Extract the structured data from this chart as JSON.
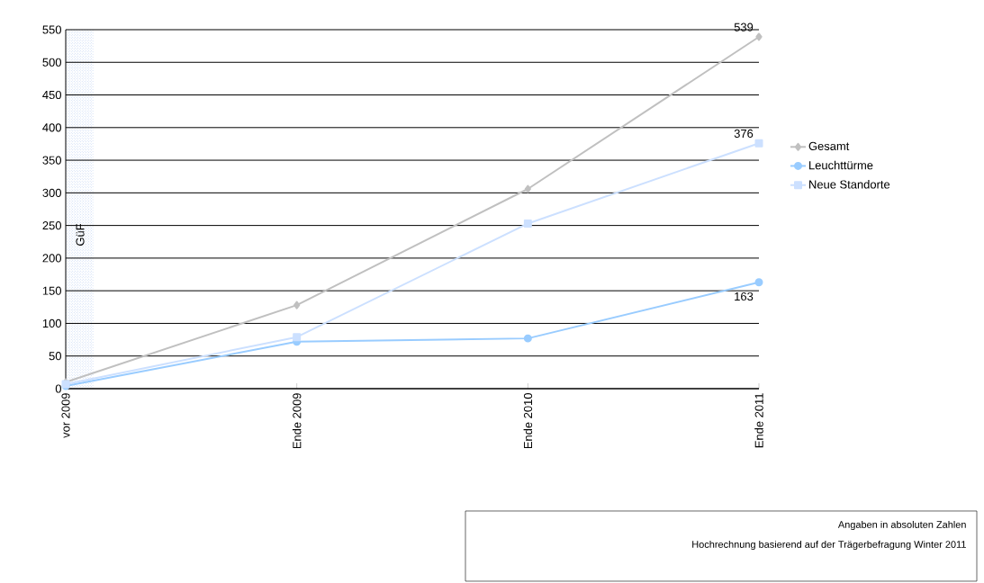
{
  "chart_data": {
    "type": "line",
    "categories": [
      "vor 2009",
      "Ende 2009",
      "Ende 2010",
      "Ende 2011"
    ],
    "series": [
      {
        "name": "Gesamt",
        "color": "#c0c0c0",
        "marker": "diamond",
        "values": [
          10,
          128,
          306,
          539
        ],
        "value_labels": [
          null,
          null,
          null,
          "539"
        ]
      },
      {
        "name": "Leuchttürme",
        "color": "#99ccff",
        "marker": "circle",
        "values": [
          4,
          72,
          77,
          163
        ],
        "value_labels": [
          null,
          null,
          null,
          "163"
        ]
      },
      {
        "name": "Neue Standorte",
        "color": "#cce0ff",
        "marker": "square",
        "values": [
          7,
          79,
          253,
          376
        ],
        "value_labels": [
          null,
          null,
          null,
          "376"
        ]
      }
    ],
    "ylim": [
      0,
      550
    ],
    "yticks": [
      0,
      50,
      100,
      150,
      200,
      250,
      300,
      350,
      400,
      450,
      500,
      550
    ],
    "grid": "y",
    "legend": "right",
    "line_style": "solid",
    "annotations": [
      "GüF",
      "Angaben in absoluten Zahlen",
      "Hochrechnung basierend auf der Trägerbefragung Winter 2011"
    ]
  }
}
